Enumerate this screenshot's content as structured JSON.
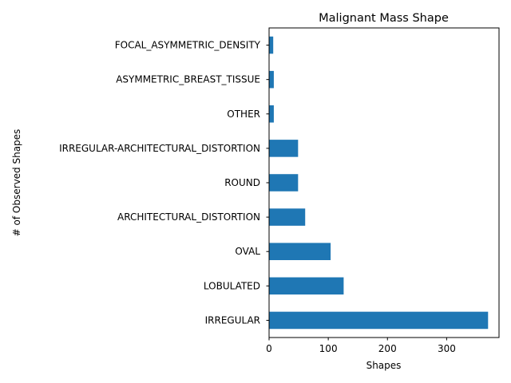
{
  "chart_data": {
    "type": "bar",
    "orientation": "horizontal",
    "title": "Malignant Mass Shape",
    "xlabel": "Shapes",
    "ylabel": "# of Observed Shapes",
    "categories": [
      "IRREGULAR",
      "LOBULATED",
      "OVAL",
      "ARCHITECTURAL_DISTORTION",
      "ROUND",
      "IRREGULAR-ARCHITECTURAL_DISTORTION",
      "OTHER",
      "ASYMMETRIC_BREAST_TISSUE",
      "FOCAL_ASYMMETRIC_DENSITY"
    ],
    "values": [
      370,
      126,
      104,
      61,
      49,
      49,
      8,
      8,
      7
    ],
    "xticks": [
      "0",
      "100",
      "200",
      "300"
    ],
    "xtick_values": [
      0,
      100,
      200,
      300
    ],
    "xlim": [
      0,
      388.5
    ],
    "grid": false,
    "bar_color": "#1f77b4"
  }
}
